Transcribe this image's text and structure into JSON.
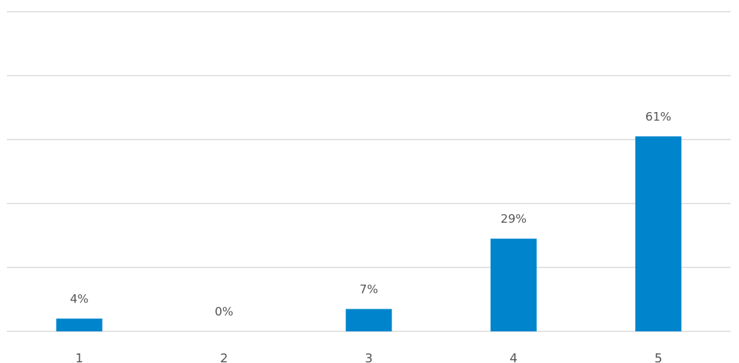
{
  "chart_data": {
    "type": "bar",
    "categories": [
      "1",
      "2",
      "3",
      "4",
      "5"
    ],
    "values": [
      4,
      0,
      7,
      29,
      61
    ],
    "value_labels": [
      "4%",
      "0%",
      "7%",
      "29%",
      "61%"
    ],
    "ylim": [
      0,
      100
    ],
    "grid": true,
    "legend": "none",
    "bar_color": "#0085cc",
    "grid_color": "#d9d9d9"
  }
}
